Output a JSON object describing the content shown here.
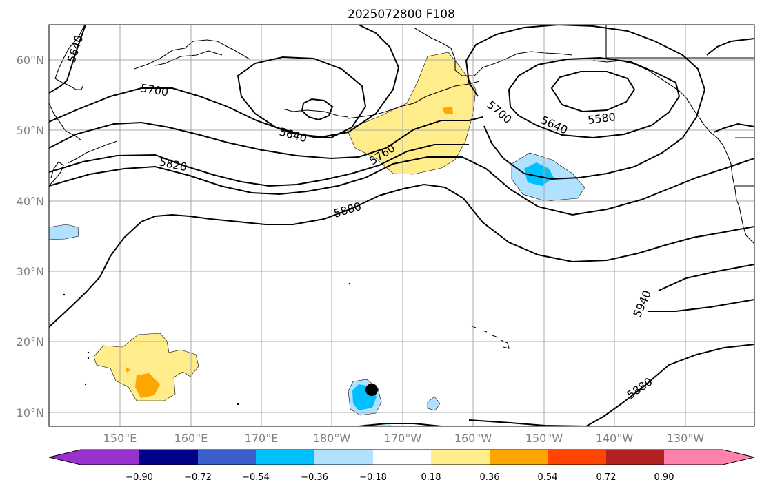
{
  "title": "2025072800 F108",
  "lat_labels": [
    "60°N",
    "50°N",
    "40°N",
    "30°N",
    "20°N",
    "10°N"
  ],
  "lon_labels": [
    "150°E",
    "160°E",
    "170°E",
    "180°W",
    "170°W",
    "160°W",
    "150°W",
    "140°W",
    "130°W"
  ],
  "contour_labels": [
    "5640",
    "5700",
    "5640",
    "5820",
    "5760",
    "5700",
    "5640",
    "5580",
    "5880",
    "5940",
    "5880"
  ],
  "colorbar": {
    "ticks": [
      "−0.90",
      "−0.72",
      "−0.54",
      "−0.36",
      "−0.18",
      "0.18",
      "0.36",
      "0.54",
      "0.72",
      "0.90"
    ],
    "colors": [
      "#9932cc",
      "#00008b",
      "#3a5fcd",
      "#00bfff",
      "#b0e2ff",
      "#ffffff",
      "#ffec8b",
      "#ffa500",
      "#ff4500",
      "#b22222",
      "#ff82ab"
    ]
  },
  "marker": "storm-center-dot"
}
